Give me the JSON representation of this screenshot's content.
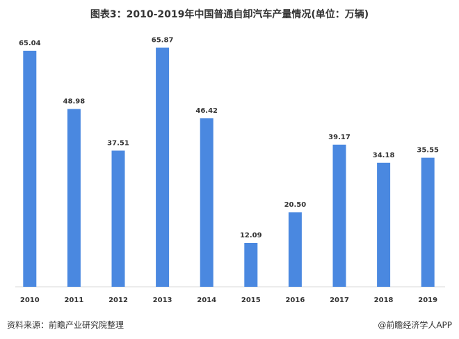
{
  "title": "图表3：2010-2019年中国普通自卸汽车产量情况(单位：万辆)",
  "footer": {
    "source": "资料来源：前瞻产业研究院整理",
    "brand": "@前瞻经济学人APP"
  },
  "chart_data": {
    "type": "bar",
    "categories": [
      "2010",
      "2011",
      "2012",
      "2013",
      "2014",
      "2015",
      "2016",
      "2017",
      "2018",
      "2019"
    ],
    "values": [
      65.04,
      48.98,
      37.51,
      65.87,
      46.42,
      12.09,
      20.5,
      39.17,
      34.18,
      35.55
    ],
    "value_labels": [
      "65.04",
      "48.98",
      "37.51",
      "65.87",
      "46.42",
      "12.09",
      "20.50",
      "39.17",
      "34.18",
      "35.55"
    ],
    "ylim": [
      0,
      70
    ],
    "bar_color": "#4A88E0",
    "grid": false
  }
}
